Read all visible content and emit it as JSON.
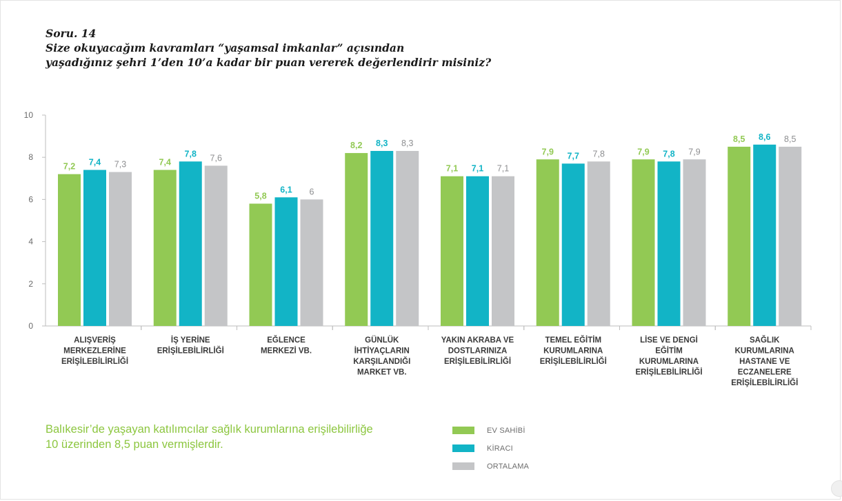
{
  "header": {
    "line1": "Soru. 14",
    "line2": "Size okuyacağım kavramları “yaşamsal imkanlar” açısından",
    "line3": "yaşadığınız şehri 1’den 10’a kadar bir puan vererek değerlendirir misiniz?"
  },
  "chart_data": {
    "type": "bar",
    "ylim": [
      0,
      10
    ],
    "yticks": [
      "0",
      "2",
      "4",
      "6",
      "8",
      "10"
    ],
    "categories": [
      [
        "ALIŞVERİŞ",
        "MERKEZLERİNE",
        "ERİŞİLEBİLİRLİĞİ"
      ],
      [
        "İŞ YERİNE",
        "ERİŞİLEBİLİRLİĞİ"
      ],
      [
        "EĞLENCE",
        "MERKEZİ VB."
      ],
      [
        "GÜNLÜK",
        "İHTİYAÇLARIN",
        "KARŞILANDIĞI",
        "MARKET VB."
      ],
      [
        "YAKIN AKRABA VE",
        "DOSTLARINIZA",
        "ERİŞİLEBİLİRLİĞİ"
      ],
      [
        "TEMEL EĞİTİM",
        "KURUMLARINA",
        "ERİŞİLEBİLİRLİĞİ"
      ],
      [
        "LİSE VE DENGİ",
        "EĞİTİM",
        "KURUMLARINA",
        "ERİŞİLEBİLİRLİĞİ"
      ],
      [
        "SAĞLIK",
        "KURUMLARINA",
        "HASTANE VE",
        "ECZANELERE",
        "ERİŞİLEBİLİRLİĞİ"
      ]
    ],
    "series": [
      {
        "name": "EV SAHİBİ",
        "color": "#92c954",
        "values": [
          7.2,
          7.4,
          5.8,
          8.2,
          7.1,
          7.9,
          7.9,
          8.5
        ],
        "labels": [
          "7,2",
          "7,4",
          "5,8",
          "8,2",
          "7,1",
          "7,9",
          "7,9",
          "8,5"
        ]
      },
      {
        "name": "KİRACI",
        "color": "#12b4c6",
        "values": [
          7.4,
          7.8,
          6.1,
          8.3,
          7.1,
          7.7,
          7.8,
          8.6
        ],
        "labels": [
          "7,4",
          "7,8",
          "6,1",
          "8,3",
          "7,1",
          "7,7",
          "7,8",
          "8,6"
        ]
      },
      {
        "name": "ORTALAMA",
        "color": "#c4c5c7",
        "values": [
          7.3,
          7.6,
          6,
          8.3,
          7.1,
          7.8,
          7.9,
          8.5
        ],
        "labels": [
          "7,3",
          "7,6",
          "6",
          "8,3",
          "7,1",
          "7,8",
          "7,9",
          "8,5"
        ]
      }
    ]
  },
  "note": {
    "line1": "Balıkesir’de yaşayan katılımcılar sağlık kurumlarına erişilebilirliğe",
    "line2": "10 üzerinden 8,5 puan vermişlerdir."
  },
  "legend": [
    {
      "label": "EV SAHİBİ",
      "color": "#92c954"
    },
    {
      "label": "KİRACI",
      "color": "#12b4c6"
    },
    {
      "label": "ORTALAMA",
      "color": "#c4c5c7"
    }
  ]
}
